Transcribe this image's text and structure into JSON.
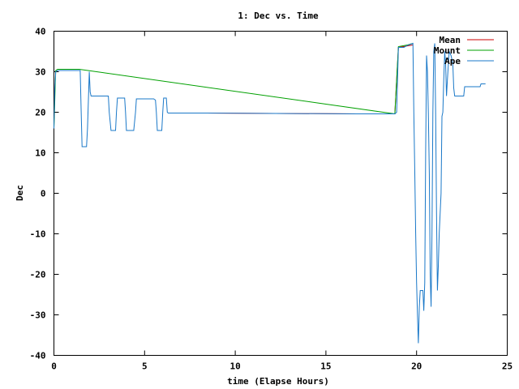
{
  "chart_data": {
    "type": "line",
    "title": "1: Dec vs. Time",
    "xlabel": "time (Elapse Hours)",
    "ylabel": "Dec",
    "xlim": [
      0,
      25
    ],
    "ylim": [
      -40,
      40
    ],
    "xticks": [
      0,
      5,
      10,
      15,
      20,
      25
    ],
    "yticks": [
      -40,
      -30,
      -20,
      -10,
      0,
      10,
      20,
      30,
      40
    ],
    "grid": false,
    "legend_position": "top-right",
    "series": [
      {
        "name": "Mean",
        "color": "#cc0000",
        "points": [
          [
            6.3,
            19.8
          ],
          [
            8.4,
            19.8
          ],
          [
            16.7,
            19.6
          ],
          [
            18.8,
            19.6
          ],
          [
            19.0,
            36.0
          ],
          [
            19.8,
            36.6
          ]
        ]
      },
      {
        "name": "Mount",
        "color": "#00a000",
        "points": [
          [
            0.0,
            16.0
          ],
          [
            0.1,
            30.3
          ],
          [
            0.2,
            30.6
          ],
          [
            1.3,
            30.6
          ],
          [
            1.4,
            30.6
          ],
          [
            18.8,
            19.6
          ],
          [
            19.0,
            36.2
          ],
          [
            19.5,
            36.6
          ],
          [
            19.8,
            37.0
          ]
        ]
      },
      {
        "name": "Ape",
        "color": "#1a78c8",
        "points": [
          [
            0.0,
            16.0
          ],
          [
            0.05,
            26.0
          ],
          [
            0.1,
            30.0
          ],
          [
            0.2,
            30.3
          ],
          [
            1.3,
            30.3
          ],
          [
            1.45,
            30.3
          ],
          [
            1.5,
            21.0
          ],
          [
            1.55,
            11.5
          ],
          [
            1.8,
            11.5
          ],
          [
            1.85,
            16.0
          ],
          [
            1.95,
            30.0
          ],
          [
            2.0,
            25.0
          ],
          [
            2.05,
            24.0
          ],
          [
            3.0,
            24.0
          ],
          [
            3.05,
            20.0
          ],
          [
            3.15,
            15.5
          ],
          [
            3.4,
            15.5
          ],
          [
            3.45,
            20.0
          ],
          [
            3.5,
            23.5
          ],
          [
            3.9,
            23.5
          ],
          [
            3.95,
            20.0
          ],
          [
            4.0,
            15.5
          ],
          [
            4.4,
            15.5
          ],
          [
            4.5,
            20.0
          ],
          [
            4.55,
            23.3
          ],
          [
            5.5,
            23.3
          ],
          [
            5.6,
            23.0
          ],
          [
            5.65,
            20.0
          ],
          [
            5.7,
            15.5
          ],
          [
            5.95,
            15.5
          ],
          [
            6.0,
            20.0
          ],
          [
            6.05,
            23.5
          ],
          [
            6.2,
            23.5
          ],
          [
            6.25,
            20.0
          ],
          [
            6.3,
            19.8
          ],
          [
            8.4,
            19.8
          ],
          [
            16.7,
            19.6
          ],
          [
            18.8,
            19.6
          ],
          [
            18.9,
            20.0
          ],
          [
            18.95,
            28.0
          ],
          [
            19.0,
            36.0
          ],
          [
            19.3,
            36.0
          ],
          [
            19.5,
            36.5
          ],
          [
            19.8,
            37.0
          ],
          [
            19.85,
            20.0
          ],
          [
            19.9,
            5.0
          ],
          [
            19.95,
            -10.0
          ],
          [
            20.0,
            -22.0
          ],
          [
            20.05,
            -30.0
          ],
          [
            20.1,
            -37.0
          ],
          [
            20.15,
            -28.0
          ],
          [
            20.2,
            -24.0
          ],
          [
            20.35,
            -24.0
          ],
          [
            20.4,
            -29.0
          ],
          [
            20.45,
            -22.0
          ],
          [
            20.5,
            10.0
          ],
          [
            20.55,
            34.0
          ],
          [
            20.6,
            30.0
          ],
          [
            20.65,
            20.0
          ],
          [
            20.7,
            5.0
          ],
          [
            20.75,
            -20.0
          ],
          [
            20.8,
            -28.0
          ],
          [
            20.85,
            -10.0
          ],
          [
            20.9,
            20.0
          ],
          [
            20.95,
            35.0
          ],
          [
            21.0,
            37.0
          ],
          [
            21.05,
            20.0
          ],
          [
            21.1,
            -5.0
          ],
          [
            21.15,
            -24.0
          ],
          [
            21.2,
            -18.0
          ],
          [
            21.25,
            -10.0
          ],
          [
            21.35,
            0.0
          ],
          [
            21.4,
            19.0
          ],
          [
            21.45,
            20.0
          ],
          [
            21.5,
            28.0
          ],
          [
            21.55,
            35.0
          ],
          [
            21.6,
            32.0
          ],
          [
            21.65,
            24.0
          ],
          [
            21.7,
            28.0
          ],
          [
            21.8,
            35.0
          ],
          [
            21.9,
            34.0
          ],
          [
            22.0,
            32.0
          ],
          [
            22.05,
            26.0
          ],
          [
            22.1,
            24.0
          ],
          [
            22.6,
            24.0
          ],
          [
            22.65,
            26.3
          ],
          [
            23.5,
            26.3
          ],
          [
            23.55,
            27.0
          ],
          [
            23.8,
            27.0
          ]
        ]
      }
    ]
  }
}
